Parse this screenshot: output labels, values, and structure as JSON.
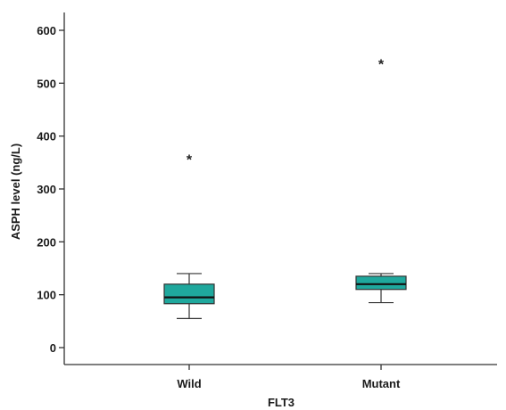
{
  "chart_data": {
    "type": "boxplot",
    "title": "",
    "xlabel": "FLT3",
    "ylabel": "ASPH level (ng/L)",
    "ylim": [
      -30,
      630
    ],
    "yticks": [
      0,
      100,
      200,
      300,
      400,
      500,
      600
    ],
    "ytick_labels": [
      "0",
      "100",
      "200",
      "300",
      "400",
      "500",
      "600"
    ],
    "grid": false,
    "legend": "none",
    "box_color": "#1fa89d",
    "categories": [
      "Wild",
      "Mutant"
    ],
    "boxes": [
      {
        "category": "Wild",
        "min": 55,
        "q1": 83,
        "median": 95,
        "q3": 120,
        "max": 140,
        "outliers": [
          360
        ]
      },
      {
        "category": "Mutant",
        "min": 85,
        "q1": 110,
        "median": 120,
        "q3": 135,
        "max": 140,
        "outliers": [
          540
        ]
      }
    ]
  }
}
